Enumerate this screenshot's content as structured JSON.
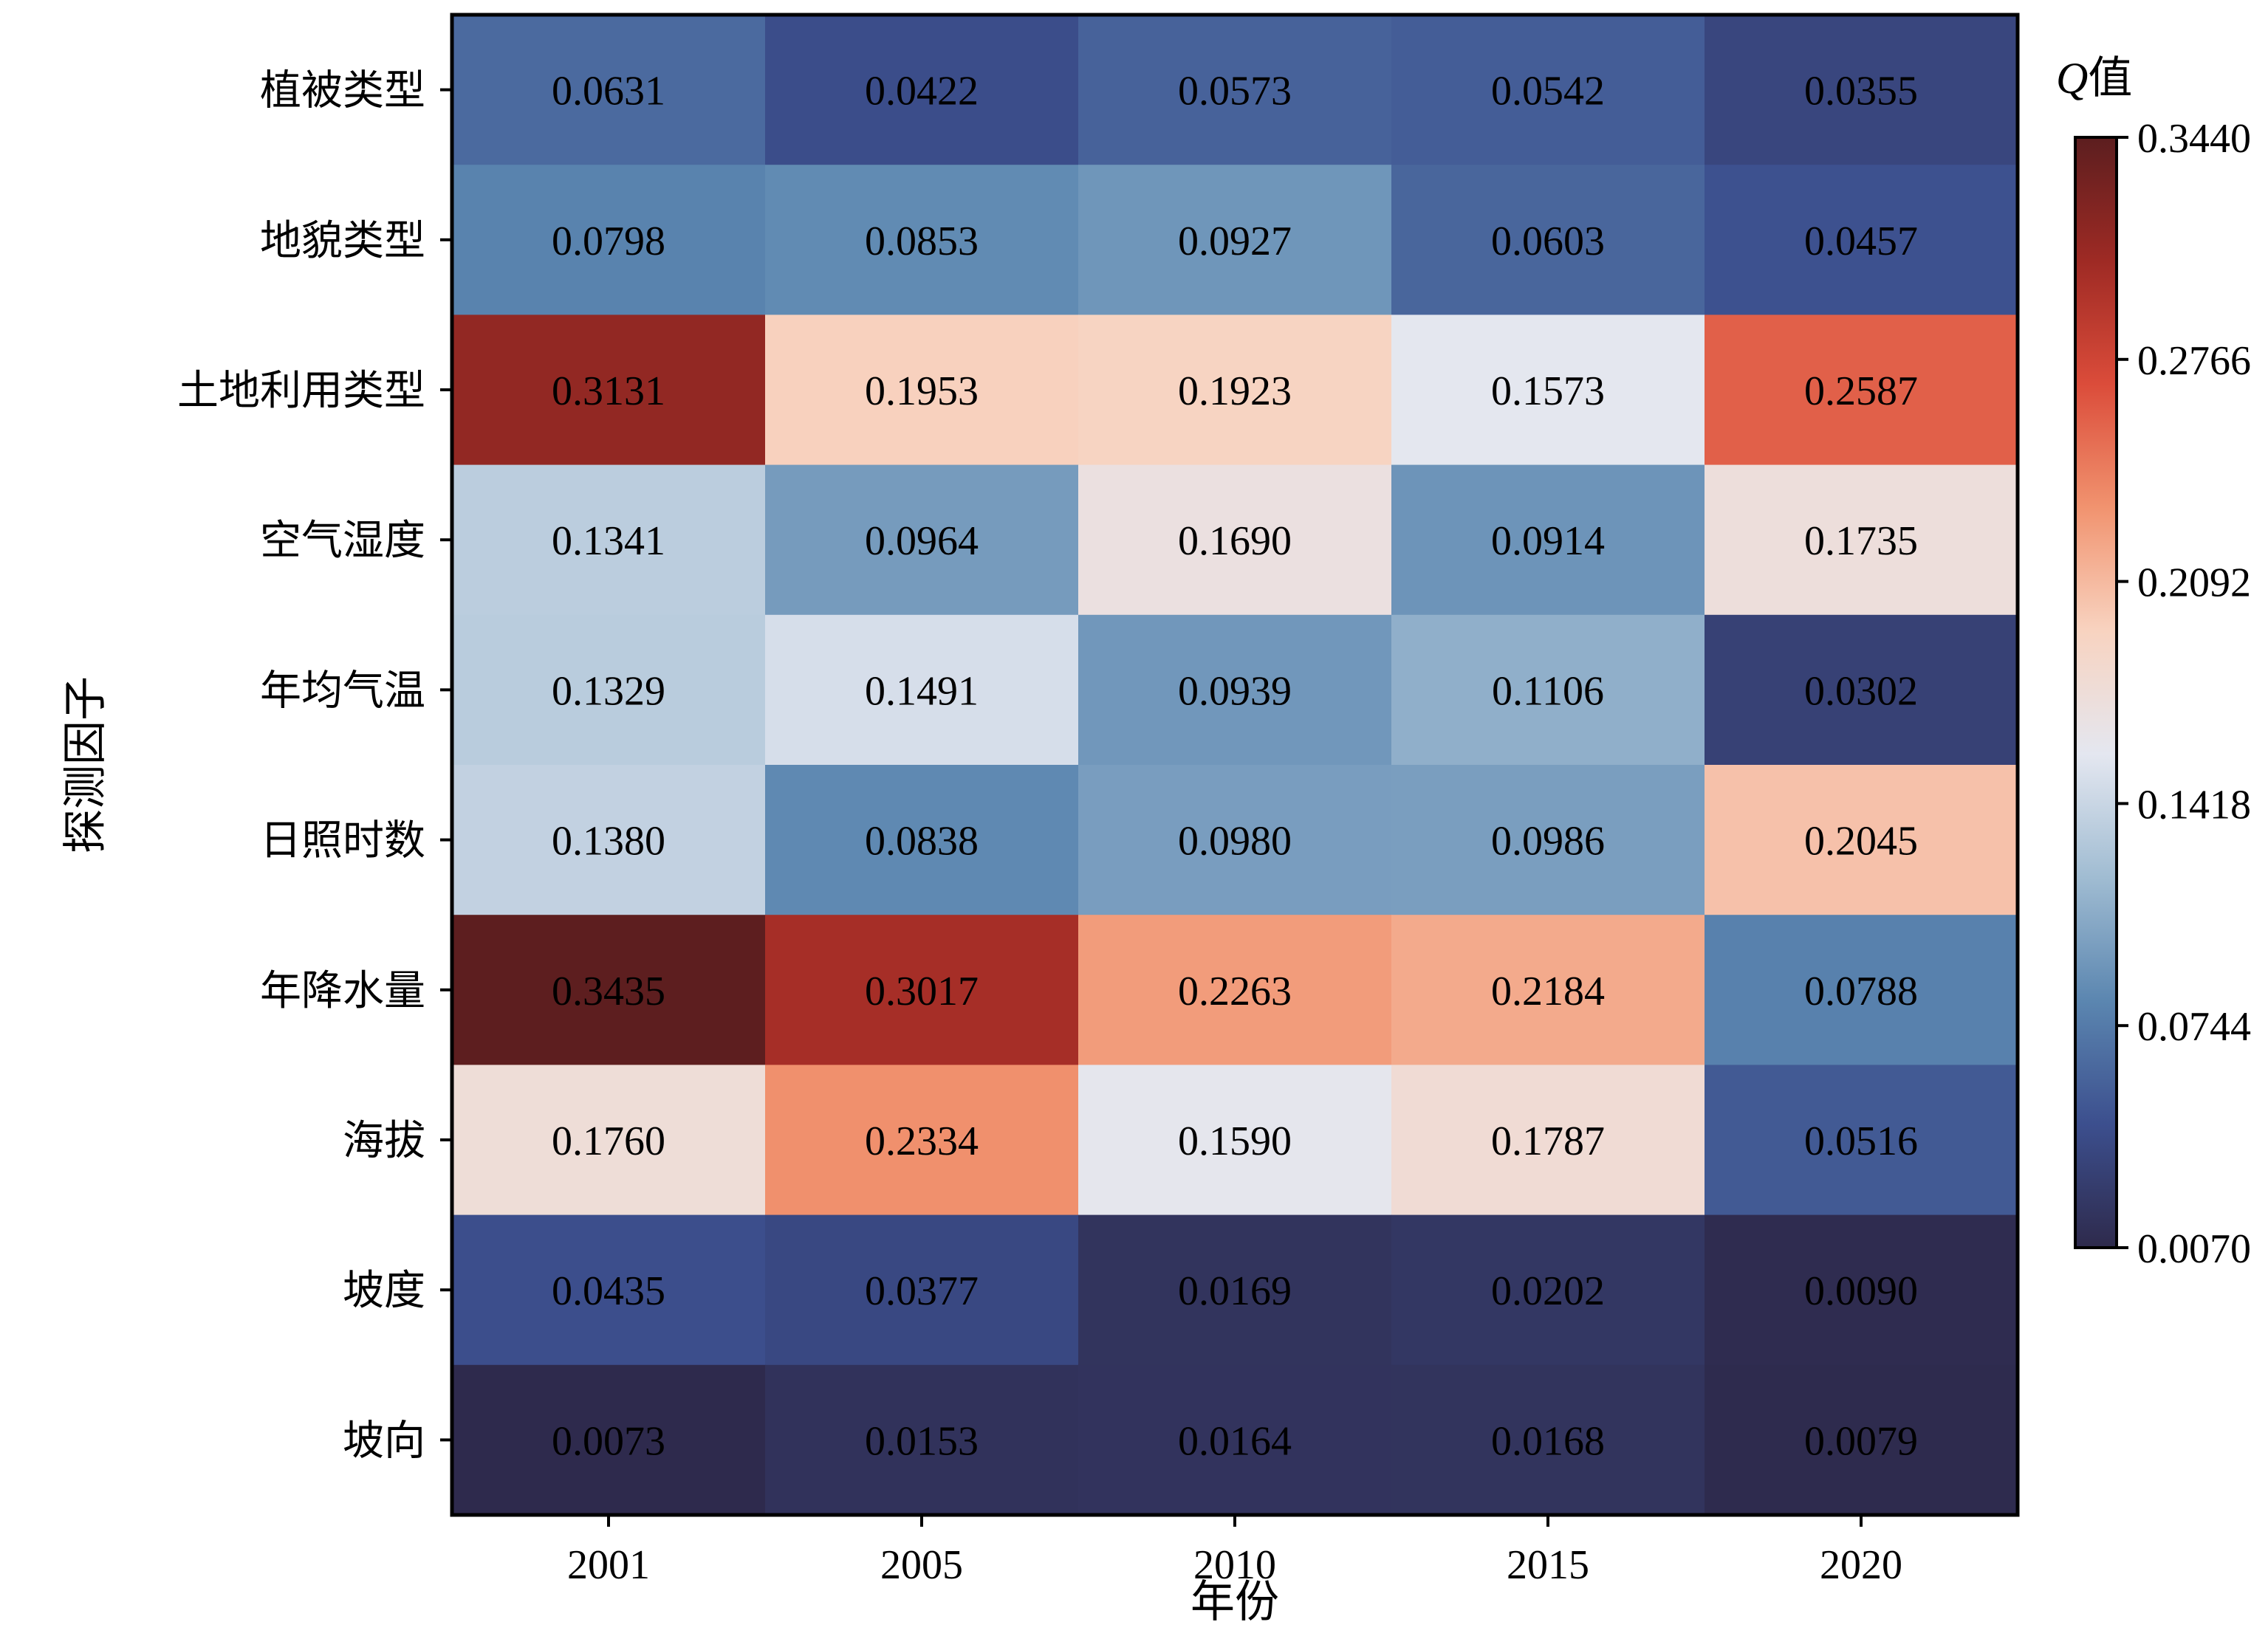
{
  "chart_data": {
    "type": "heatmap",
    "xlabel": "年份",
    "ylabel": "探测因子",
    "x_categories": [
      "2001",
      "2005",
      "2010",
      "2015",
      "2020"
    ],
    "y_categories": [
      "植被类型",
      "地貌类型",
      "土地利用类型",
      "空气湿度",
      "年均气温",
      "日照时数",
      "年降水量",
      "海拔",
      "坡度",
      "坡向"
    ],
    "values": [
      [
        0.0631,
        0.0422,
        0.0573,
        0.0542,
        0.0355
      ],
      [
        0.0798,
        0.0853,
        0.0927,
        0.0603,
        0.0457
      ],
      [
        0.3131,
        0.1953,
        0.1923,
        0.1573,
        0.2587
      ],
      [
        0.1341,
        0.0964,
        0.169,
        0.0914,
        0.1735
      ],
      [
        0.1329,
        0.1491,
        0.0939,
        0.1106,
        0.0302
      ],
      [
        0.138,
        0.0838,
        0.098,
        0.0986,
        0.2045
      ],
      [
        0.3435,
        0.3017,
        0.2263,
        0.2184,
        0.0788
      ],
      [
        0.176,
        0.2334,
        0.159,
        0.1787,
        0.0516
      ],
      [
        0.0435,
        0.0377,
        0.0169,
        0.0202,
        0.009
      ],
      [
        0.0073,
        0.0153,
        0.0164,
        0.0168,
        0.0079
      ]
    ],
    "value_labels": [
      [
        "0.0631",
        "0.0422",
        "0.0573",
        "0.0542",
        "0.0355"
      ],
      [
        "0.0798",
        "0.0853",
        "0.0927",
        "0.0603",
        "0.0457"
      ],
      [
        "0.3131",
        "0.1953",
        "0.1923",
        "0.1573",
        "0.2587"
      ],
      [
        "0.1341",
        "0.0964",
        "0.1690",
        "0.0914",
        "0.1735"
      ],
      [
        "0.1329",
        "0.1491",
        "0.0939",
        "0.1106",
        "0.0302"
      ],
      [
        "0.1380",
        "0.0838",
        "0.0980",
        "0.0986",
        "0.2045"
      ],
      [
        "0.3435",
        "0.3017",
        "0.2263",
        "0.2184",
        "0.0788"
      ],
      [
        "0.1760",
        "0.2334",
        "0.1590",
        "0.1787",
        "0.0516"
      ],
      [
        "0.0435",
        "0.0377",
        "0.0169",
        "0.0202",
        "0.0090"
      ],
      [
        "0.0073",
        "0.0153",
        "0.0164",
        "0.0168",
        "0.0079"
      ]
    ],
    "colorbar": {
      "title_italic": "Q",
      "title_rest": "值",
      "min": 0.007,
      "max": 0.344,
      "ticks": [
        "0.0070",
        "0.0744",
        "0.1418",
        "0.2092",
        "0.2766",
        "0.3440"
      ],
      "colors": [
        "#2e2a4c",
        "#3c4f8e",
        "#5b86b0",
        "#a0bcd2",
        "#e4e7f0",
        "#f8d3c0",
        "#f1936f",
        "#db4c3a",
        "#9e2a24",
        "#5c1e1f"
      ]
    }
  }
}
